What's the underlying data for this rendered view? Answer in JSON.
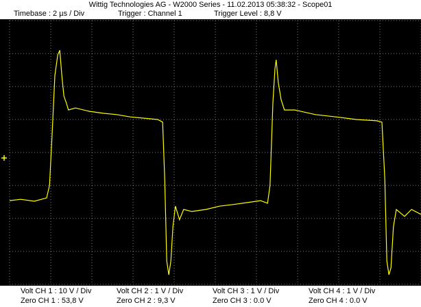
{
  "header": {
    "title": "Wittig Technologies AG - W2000 Series  -  11.02.2013 05:38:32 - Scope01",
    "timebase": "Timebase : 2 µs / Div",
    "trigger": "Trigger : Channel 1",
    "trigger_level": "Trigger Level : 8,8 V"
  },
  "footer": {
    "channels": [
      {
        "volt": "Volt CH 1 : 10 V / Div",
        "zero": "Zero CH 1 : 53,8 V"
      },
      {
        "volt": "Volt CH 2 : 1 V / Div",
        "zero": "Zero CH 2 : 9,3 V"
      },
      {
        "volt": "Volt CH 3 : 1 V / Div",
        "zero": "Zero CH 3 : 0.0 V"
      },
      {
        "volt": "Volt CH 4 : 1 V / Div",
        "zero": "Zero CH 4 : 0.0 V"
      }
    ]
  },
  "trace": {
    "color": "#ffff00",
    "x": [
      0,
      0.27,
      0.6,
      0.9,
      0.97,
      1.03,
      1.1,
      1.17,
      1.22,
      1.27,
      1.32,
      1.38,
      1.43,
      1.6,
      1.93,
      2.27,
      2.6,
      2.93,
      3.27,
      3.6,
      3.72,
      3.77,
      3.82,
      3.87,
      3.92,
      3.97,
      4.03,
      4.13,
      4.23,
      4.43,
      4.77,
      5.1,
      5.43,
      5.77,
      6.1,
      6.27,
      6.33,
      6.4,
      6.45,
      6.48,
      6.53,
      6.6,
      6.68,
      6.93,
      7.43,
      7.93,
      8.43,
      8.93,
      9.05,
      9.12,
      9.17,
      9.22,
      9.27,
      9.33,
      9.4,
      9.6,
      9.77,
      10
    ],
    "y": [
      -1.46,
      -1.42,
      -1.48,
      -1.38,
      -1.0,
      0.46,
      2.33,
      2.96,
      3.1,
      2.33,
      1.71,
      1.5,
      1.29,
      1.35,
      1.25,
      1.19,
      1.15,
      1.08,
      1.04,
      1.0,
      0.92,
      -0.79,
      -3.29,
      -3.71,
      -3.29,
      -2.25,
      -1.63,
      -2.04,
      -1.73,
      -1.79,
      -1.73,
      -1.63,
      -1.58,
      -1.52,
      -1.46,
      -1.54,
      -1.0,
      1.5,
      2.54,
      2.81,
      2.13,
      1.6,
      1.29,
      1.29,
      1.15,
      1.08,
      1.0,
      0.96,
      0.92,
      -0.79,
      -3.29,
      -3.71,
      -3.5,
      -2.25,
      -1.73,
      -1.94,
      -1.73,
      -1.88
    ]
  }
}
